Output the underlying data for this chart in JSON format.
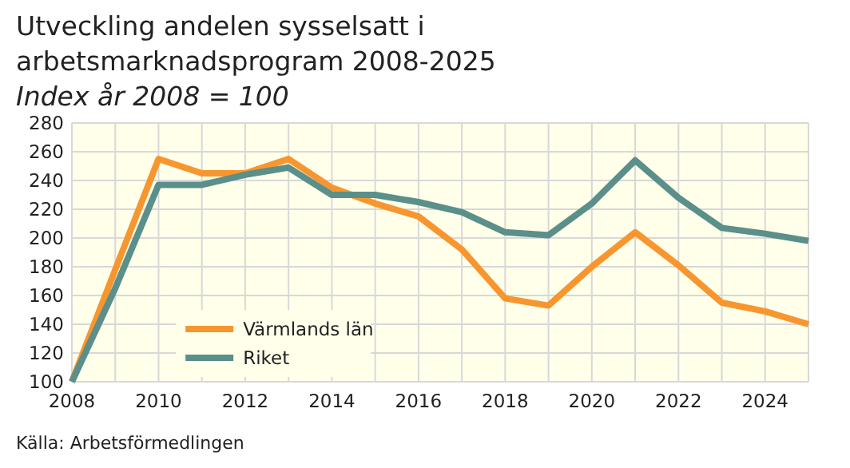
{
  "chart_data": {
    "type": "line",
    "title": "Utveckling andelen sysselsatt i arbetsmarknadsprogram 2008-2025",
    "subtitle": "Index år 2008 = 100",
    "annotations": [
      "Källa: Arbetsförmedlingen"
    ],
    "x": [
      2008,
      2009,
      2010,
      2011,
      2012,
      2013,
      2014,
      2015,
      2016,
      2017,
      2018,
      2019,
      2020,
      2021,
      2022,
      2023,
      2024,
      2025
    ],
    "series": [
      {
        "name": "Värmlands län",
        "color": "#f7962f",
        "values": [
          100,
          178,
          255,
          245,
          245,
          255,
          235,
          224,
          215,
          192,
          158,
          153,
          180,
          204,
          181,
          155,
          149,
          140
        ]
      },
      {
        "name": "Riket",
        "color": "#5a8f8a",
        "values": [
          100,
          165,
          237,
          237,
          244,
          249,
          230,
          230,
          225,
          218,
          204,
          202,
          224,
          254,
          228,
          207,
          203,
          198
        ]
      }
    ],
    "xlim": [
      2008,
      2025
    ],
    "xticks": [
      2008,
      2010,
      2012,
      2014,
      2016,
      2018,
      2020,
      2022,
      2024
    ],
    "ylim": [
      100,
      280
    ],
    "yticks": [
      100,
      120,
      140,
      160,
      180,
      200,
      220,
      240,
      260,
      280
    ],
    "grid": true,
    "legend": "bottom",
    "marker": "none",
    "line_style": "solid"
  }
}
